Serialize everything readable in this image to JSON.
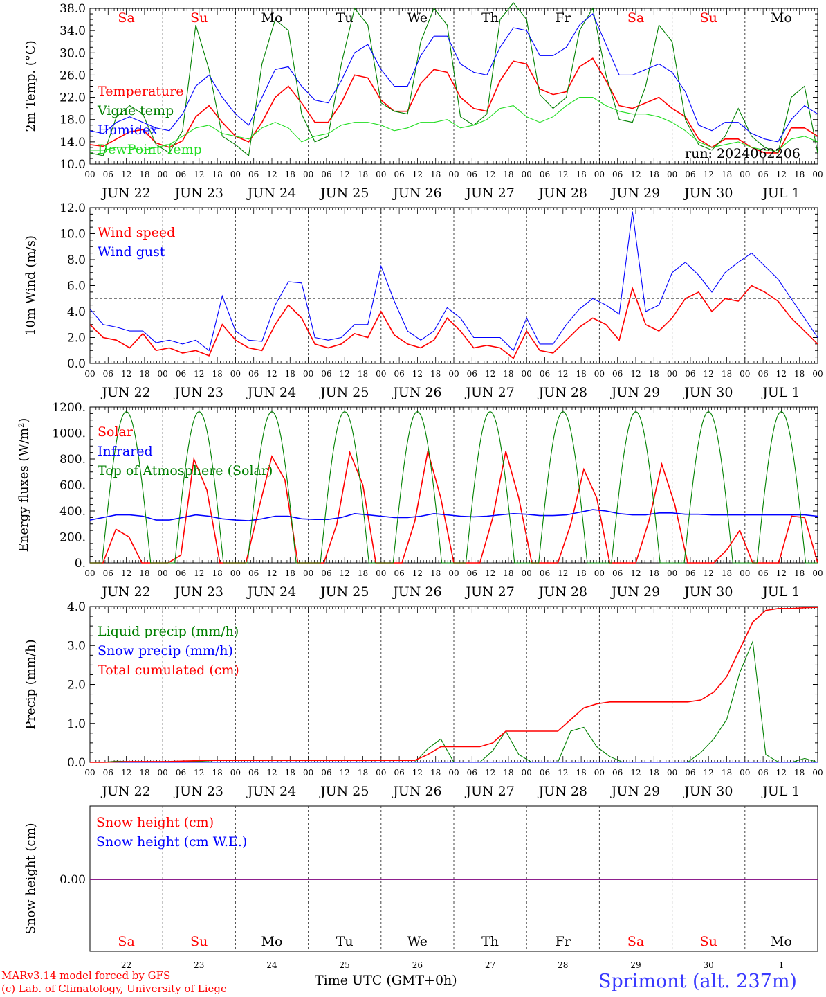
{
  "meta": {
    "run": "run: 2024062206",
    "xlabel": "Time UTC (GMT+0h)",
    "credit_model": "MARv3.14 model forced by GFS",
    "credit_lab": "(c) Lab. of Climatology, University of Liege",
    "station": "Sprimont (alt. 237m)"
  },
  "days": [
    {
      "weekday": "Sa",
      "weekend": true,
      "date": "JUN 22",
      "num": "22"
    },
    {
      "weekday": "Su",
      "weekend": true,
      "date": "JUN 23",
      "num": "23"
    },
    {
      "weekday": "Mo",
      "weekend": false,
      "date": "JUN 24",
      "num": "24"
    },
    {
      "weekday": "Tu",
      "weekend": false,
      "date": "JUN 25",
      "num": "25"
    },
    {
      "weekday": "We",
      "weekend": false,
      "date": "JUN 26",
      "num": "26"
    },
    {
      "weekday": "Th",
      "weekend": false,
      "date": "JUN 27",
      "num": "27"
    },
    {
      "weekday": "Fr",
      "weekend": false,
      "date": "JUN 28",
      "num": "28"
    },
    {
      "weekday": "Sa",
      "weekend": true,
      "date": "JUN 29",
      "num": "29"
    },
    {
      "weekday": "Su",
      "weekend": true,
      "date": "JUN 30",
      "num": "30"
    },
    {
      "weekday": "Mo",
      "weekend": false,
      "date": "JUL  1",
      "num": "1"
    }
  ],
  "hour_ticks": [
    "00",
    "06",
    "12",
    "18"
  ],
  "colors": {
    "red": "#ff0000",
    "green": "#008000",
    "blue": "#0000ff",
    "lightgreen": "#22dd22",
    "purple": "#7f007f",
    "axis": "#000000"
  },
  "chart_data": [
    {
      "type": "line",
      "ylabel": "2m Temp. (°C)",
      "ylim": [
        10,
        38
      ],
      "yticks": [
        "10.0",
        "14.0",
        "18.0",
        "22.0",
        "26.0",
        "30.0",
        "34.0",
        "38.0"
      ],
      "x_unit": "hours since Jun 22 00 UTC (every 6 h)",
      "series": [
        {
          "name": "Temperature",
          "color": "red",
          "values": [
            13.5,
            13.2,
            14.5,
            15.8,
            16.2,
            13.8,
            13.0,
            14.2,
            18.5,
            20.5,
            17.5,
            15.0,
            14.0,
            17.5,
            22.0,
            24.0,
            21.0,
            17.5,
            17.5,
            21.0,
            26.0,
            25.5,
            21.5,
            19.5,
            19.5,
            24.5,
            27.0,
            26.5,
            22.0,
            20.0,
            19.5,
            25.0,
            28.5,
            28.0,
            23.5,
            22.5,
            23.0,
            27.5,
            29.0,
            25.0,
            20.5,
            20.0,
            21.0,
            22.0,
            20.0,
            18.5,
            14.5,
            13.0,
            14.5,
            14.5,
            13.0,
            12.0,
            12.0,
            16.5,
            16.5,
            15.0
          ]
        },
        {
          "name": "Vigne temp",
          "color": "green",
          "values": [
            12.0,
            11.5,
            18.5,
            20.5,
            19.0,
            13.5,
            12.0,
            16.0,
            35.0,
            27.0,
            15.0,
            13.5,
            11.5,
            28.0,
            36.0,
            34.0,
            19.0,
            14.0,
            15.0,
            28.0,
            38.0,
            35.0,
            21.0,
            19.5,
            19.0,
            32.0,
            38.0,
            35.0,
            18.5,
            17.0,
            19.0,
            36.0,
            39.0,
            36.0,
            22.5,
            20.0,
            22.0,
            34.0,
            38.0,
            26.0,
            18.0,
            17.5,
            24.0,
            35.0,
            32.0,
            18.0,
            13.5,
            12.5,
            15.0,
            20.0,
            15.0,
            13.0,
            12.0,
            22.0,
            24.0,
            12.0
          ]
        },
        {
          "name": "Humidex",
          "color": "blue",
          "values": [
            16.0,
            15.5,
            17.5,
            18.5,
            17.5,
            16.5,
            16.0,
            19.0,
            24.0,
            26.0,
            22.0,
            19.0,
            17.0,
            22.0,
            27.0,
            27.5,
            24.0,
            21.5,
            21.0,
            25.0,
            30.0,
            31.5,
            27.0,
            24.0,
            24.0,
            29.5,
            33.0,
            33.0,
            28.0,
            26.5,
            26.0,
            31.0,
            34.5,
            34.0,
            29.5,
            29.5,
            31.0,
            35.0,
            37.0,
            31.5,
            26.0,
            26.0,
            27.0,
            28.0,
            26.5,
            23.0,
            17.0,
            16.0,
            17.5,
            17.5,
            15.5,
            14.5,
            14.0,
            18.0,
            20.5,
            19.0
          ]
        },
        {
          "name": "DewPoint Temp",
          "color": "lightgreen",
          "values": [
            12.5,
            12.5,
            13.0,
            13.0,
            12.5,
            13.0,
            13.5,
            15.0,
            16.5,
            17.0,
            15.5,
            15.0,
            14.5,
            16.5,
            17.5,
            16.5,
            14.0,
            15.0,
            15.5,
            17.0,
            17.5,
            17.5,
            17.0,
            16.0,
            16.5,
            17.5,
            17.5,
            18.0,
            16.5,
            17.0,
            18.0,
            20.0,
            20.5,
            18.5,
            17.5,
            18.5,
            20.5,
            22.0,
            22.0,
            20.5,
            19.5,
            19.0,
            19.0,
            18.5,
            17.5,
            16.0,
            14.0,
            13.0,
            13.5,
            14.0,
            13.0,
            12.5,
            12.5,
            14.5,
            15.0,
            14.0
          ]
        }
      ]
    },
    {
      "type": "line",
      "ylabel": "10m Wind (m/s)",
      "ylim": [
        0,
        12
      ],
      "yticks": [
        "0.0",
        "2.0",
        "4.0",
        "6.0",
        "8.0",
        "10.0",
        "12.0"
      ],
      "reference_line": 5.0,
      "series": [
        {
          "name": "Wind speed",
          "color": "red",
          "values": [
            3.0,
            2.0,
            1.8,
            1.2,
            2.3,
            1.0,
            1.2,
            0.8,
            1.0,
            0.6,
            3.0,
            1.8,
            1.2,
            1.0,
            3.0,
            4.5,
            3.5,
            1.5,
            1.2,
            1.5,
            2.3,
            2.0,
            4.0,
            2.2,
            1.5,
            1.2,
            1.8,
            3.5,
            2.5,
            1.2,
            1.4,
            1.2,
            0.4,
            2.5,
            1.0,
            0.8,
            1.8,
            2.8,
            3.5,
            3.0,
            1.8,
            5.8,
            3.0,
            2.5,
            3.5,
            5.0,
            5.5,
            4.0,
            5.0,
            4.8,
            6.0,
            5.5,
            4.8,
            3.5,
            2.5,
            1.5
          ]
        },
        {
          "name": "Wind gust",
          "color": "blue",
          "values": [
            4.2,
            3.0,
            2.8,
            2.5,
            2.5,
            1.6,
            1.8,
            1.5,
            1.8,
            1.0,
            5.2,
            2.5,
            1.8,
            1.7,
            4.5,
            6.3,
            6.2,
            2.0,
            1.8,
            2.0,
            3.0,
            3.0,
            7.5,
            4.8,
            2.5,
            1.8,
            2.5,
            4.3,
            3.5,
            2.0,
            2.0,
            2.0,
            1.0,
            3.5,
            1.5,
            1.5,
            3.0,
            4.2,
            5.0,
            4.5,
            3.8,
            11.7,
            4.0,
            4.5,
            7.0,
            7.8,
            6.8,
            5.5,
            7.0,
            7.8,
            8.5,
            7.5,
            6.5,
            5.0,
            3.5,
            2.0
          ]
        }
      ]
    },
    {
      "type": "line",
      "ylabel": "Energy fluxes (W/m²)",
      "ylim": [
        0,
        1200
      ],
      "yticks": [
        "0.",
        "200.",
        "400.",
        "600.",
        "800.",
        "1000.",
        "1200."
      ],
      "series": [
        {
          "name": "Solar",
          "color": "red",
          "values": [
            0,
            0,
            260,
            200,
            0,
            0,
            0,
            60,
            800,
            560,
            0,
            0,
            0,
            420,
            820,
            640,
            0,
            0,
            0,
            300,
            850,
            600,
            0,
            0,
            0,
            320,
            860,
            500,
            0,
            0,
            0,
            350,
            860,
            500,
            0,
            0,
            0,
            300,
            720,
            500,
            0,
            0,
            0,
            320,
            760,
            450,
            0,
            0,
            0,
            100,
            250,
            0,
            0,
            0,
            360,
            350,
            0
          ]
        },
        {
          "name": "Infrared",
          "color": "blue",
          "values": [
            330,
            350,
            370,
            370,
            360,
            330,
            330,
            350,
            370,
            360,
            340,
            330,
            325,
            340,
            360,
            360,
            340,
            335,
            335,
            350,
            380,
            370,
            360,
            350,
            350,
            360,
            380,
            370,
            360,
            355,
            360,
            370,
            380,
            375,
            365,
            365,
            370,
            390,
            410,
            400,
            380,
            370,
            370,
            385,
            385,
            375,
            375,
            370,
            370,
            370,
            370,
            370,
            370,
            370,
            370,
            360
          ]
        },
        {
          "name": "Top of Atmosphere (Solar)",
          "color": "green",
          "peak": 1165,
          "sunrise_hour": 4,
          "sunset_hour": 20
        }
      ]
    },
    {
      "type": "line",
      "ylabel": "Precip (mm/h)",
      "ylim": [
        0,
        4
      ],
      "yticks": [
        "0.0",
        "1.0",
        "2.0",
        "3.0",
        "4.0"
      ],
      "series": [
        {
          "name": "Liquid precip (mm/h)",
          "color": "green",
          "values": [
            0,
            0,
            0.03,
            0.02,
            0,
            0,
            0,
            0,
            0.03,
            0.02,
            0,
            0,
            0,
            0,
            0,
            0,
            0,
            0,
            0,
            0,
            0,
            0,
            0,
            0,
            0,
            0,
            0.35,
            0.6,
            0,
            0,
            0,
            0.3,
            0.8,
            0.2,
            0,
            0,
            0,
            0.8,
            0.9,
            0.4,
            0.15,
            0,
            0,
            0,
            0,
            0,
            0,
            0.25,
            0.6,
            1.1,
            2.3,
            3.1,
            0.2,
            0,
            0,
            0.1,
            0
          ]
        },
        {
          "name": "Snow precip (mm/h)",
          "color": "blue",
          "values": [
            0,
            0,
            0,
            0,
            0,
            0,
            0,
            0,
            0,
            0,
            0,
            0,
            0,
            0,
            0,
            0,
            0,
            0,
            0,
            0,
            0,
            0,
            0,
            0,
            0,
            0,
            0,
            0,
            0,
            0,
            0,
            0,
            0,
            0,
            0,
            0,
            0,
            0,
            0,
            0,
            0,
            0,
            0,
            0,
            0,
            0,
            0,
            0,
            0,
            0,
            0,
            0,
            0,
            0,
            0,
            0,
            0
          ]
        },
        {
          "name": "Total cumulated (cm)",
          "color": "red",
          "values": [
            0,
            0,
            0.01,
            0.02,
            0.02,
            0.02,
            0.02,
            0.03,
            0.04,
            0.05,
            0.05,
            0.05,
            0.05,
            0.05,
            0.05,
            0.05,
            0.05,
            0.05,
            0.05,
            0.05,
            0.05,
            0.05,
            0.05,
            0.05,
            0.05,
            0.05,
            0.2,
            0.4,
            0.4,
            0.4,
            0.4,
            0.5,
            0.8,
            0.8,
            0.8,
            0.8,
            0.8,
            1.1,
            1.4,
            1.5,
            1.55,
            1.55,
            1.55,
            1.55,
            1.55,
            1.55,
            1.55,
            1.6,
            1.8,
            2.2,
            2.9,
            3.6,
            3.9,
            3.95,
            3.95,
            3.97,
            3.98
          ]
        }
      ]
    },
    {
      "type": "line",
      "ylabel": "Snow height (cm)",
      "yticks": [
        "0.00"
      ],
      "series": [
        {
          "name": "Snow height (cm)",
          "color": "red",
          "values": [
            0,
            0
          ]
        },
        {
          "name": "Snow height (cm W.E.)",
          "color": "blue",
          "values": [
            0,
            0
          ]
        }
      ]
    }
  ]
}
